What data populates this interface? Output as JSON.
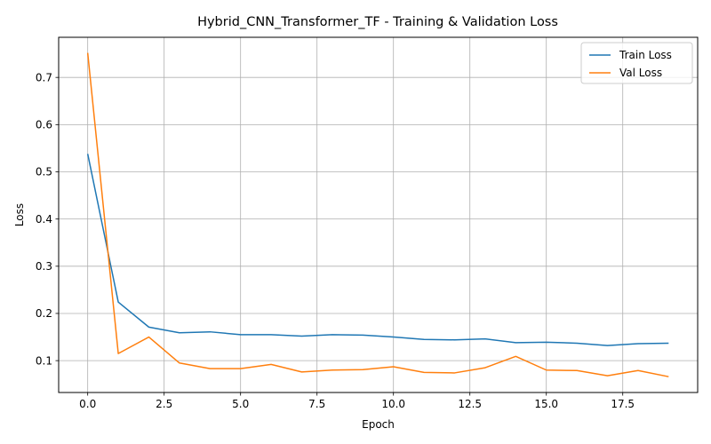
{
  "chart_data": {
    "type": "line",
    "title": "Hybrid_CNN_Transformer_TF - Training & Validation Loss",
    "xlabel": "Epoch",
    "ylabel": "Loss",
    "x": [
      0,
      1,
      2,
      3,
      4,
      5,
      6,
      7,
      8,
      9,
      10,
      11,
      12,
      13,
      14,
      15,
      16,
      17,
      18,
      19
    ],
    "xlim": [
      -0.95,
      19.95
    ],
    "ylim": [
      0.0325,
      0.785
    ],
    "xticks": [
      0.0,
      2.5,
      5.0,
      7.5,
      10.0,
      12.5,
      15.0,
      17.5
    ],
    "xtick_labels": [
      "0.0",
      "2.5",
      "5.0",
      "7.5",
      "10.0",
      "12.5",
      "15.0",
      "17.5"
    ],
    "yticks": [
      0.1,
      0.2,
      0.3,
      0.4,
      0.5,
      0.6,
      0.7
    ],
    "ytick_labels": [
      "0.1",
      "0.2",
      "0.3",
      "0.4",
      "0.5",
      "0.6",
      "0.7"
    ],
    "grid": true,
    "legend_position": "top-right",
    "series": [
      {
        "name": "Train Loss",
        "color": "#1f77b4",
        "values": [
          0.538,
          0.224,
          0.171,
          0.159,
          0.161,
          0.155,
          0.155,
          0.152,
          0.155,
          0.154,
          0.15,
          0.145,
          0.144,
          0.146,
          0.138,
          0.139,
          0.137,
          0.132,
          0.136,
          0.137
        ]
      },
      {
        "name": "Val Loss",
        "color": "#ff7f0e",
        "values": [
          0.752,
          0.115,
          0.15,
          0.095,
          0.083,
          0.083,
          0.092,
          0.076,
          0.08,
          0.081,
          0.087,
          0.075,
          0.074,
          0.085,
          0.109,
          0.08,
          0.079,
          0.068,
          0.079,
          0.066
        ]
      }
    ]
  }
}
